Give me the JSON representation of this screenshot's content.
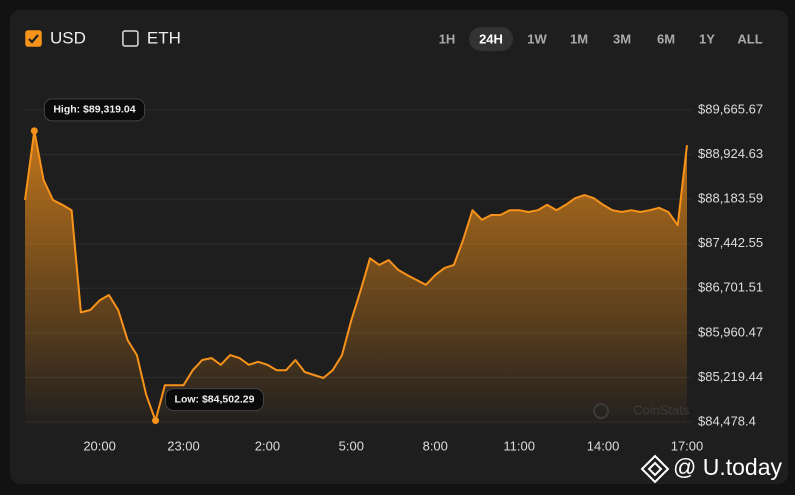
{
  "currencies": [
    {
      "label": "USD",
      "checked": true
    },
    {
      "label": "ETH",
      "checked": false
    }
  ],
  "ranges": [
    {
      "label": "1H",
      "active": false
    },
    {
      "label": "24H",
      "active": true
    },
    {
      "label": "1W",
      "active": false
    },
    {
      "label": "1M",
      "active": false
    },
    {
      "label": "3M",
      "active": false
    },
    {
      "label": "6M",
      "active": false
    },
    {
      "label": "1Y",
      "active": false
    },
    {
      "label": "ALL",
      "active": false
    }
  ],
  "watermarks": [
    "CoinStats",
    "@ U.today"
  ],
  "chart_data": {
    "type": "area",
    "color": "#f7931a",
    "annotations": [
      "High: $89,319.04",
      "Low: $84,502.29"
    ],
    "categories": [
      null,
      null,
      null,
      null,
      null,
      null,
      null,
      null,
      "20:00",
      null,
      null,
      null,
      null,
      null,
      null,
      null,
      null,
      "23:00",
      null,
      null,
      null,
      null,
      null,
      null,
      null,
      null,
      "2:00",
      null,
      null,
      null,
      null,
      null,
      null,
      null,
      null,
      "5:00",
      null,
      null,
      null,
      null,
      null,
      null,
      null,
      null,
      "8:00",
      null,
      null,
      null,
      null,
      null,
      null,
      null,
      null,
      "11:00",
      null,
      null,
      null,
      null,
      null,
      null,
      null,
      null,
      "14:00",
      null,
      null,
      null,
      null,
      null,
      null,
      null,
      null,
      "17:00"
    ],
    "values": [
      88170,
      89319.04,
      88500,
      88170,
      88090,
      88000,
      86300,
      86340,
      86500,
      86590,
      86340,
      85840,
      85590,
      84930,
      84502.29,
      85090,
      85090,
      85090,
      85340,
      85510,
      85540,
      85430,
      85590,
      85540,
      85430,
      85480,
      85430,
      85340,
      85340,
      85510,
      85310,
      85260,
      85210,
      85340,
      85590,
      86170,
      86670,
      87200,
      87090,
      87170,
      87010,
      86920,
      86840,
      86760,
      86920,
      87040,
      87090,
      87510,
      88000,
      87840,
      87920,
      87920,
      88000,
      88000,
      87970,
      88000,
      88090,
      88000,
      88090,
      88200,
      88250,
      88200,
      88090,
      88000,
      87970,
      88000,
      87970,
      88000,
      88040,
      87970,
      87750,
      89080
    ],
    "ylim": [
      84478.4,
      89665.67
    ],
    "yticks": [
      {
        "value": 84478.4,
        "label": "$84,478.4"
      },
      {
        "value": 85219.44,
        "label": "$85,219.44"
      },
      {
        "value": 85960.47,
        "label": "$85,960.47"
      },
      {
        "value": 86701.51,
        "label": "$86,701.51"
      },
      {
        "value": 87442.55,
        "label": "$87,442.55"
      },
      {
        "value": 88183.59,
        "label": "$88,183.59"
      },
      {
        "value": 88924.63,
        "label": "$88,924.63"
      },
      {
        "value": 89665.67,
        "label": "$89,665.67"
      }
    ],
    "grid": true
  }
}
